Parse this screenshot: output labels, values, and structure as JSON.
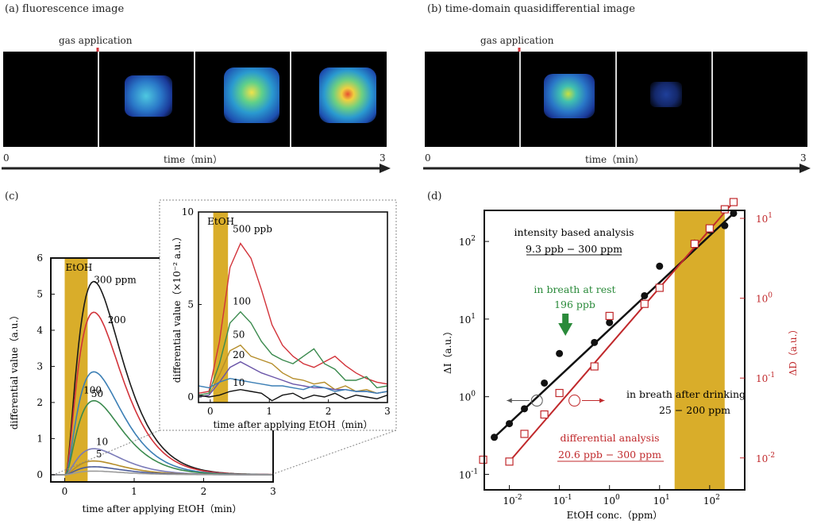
{
  "panels": {
    "a": {
      "label": "(a)  fluorescence image"
    },
    "b": {
      "label": "(b)  time-domain quasidifferential image"
    },
    "c": {
      "label": "(c)"
    },
    "d": {
      "label": "(d)"
    }
  },
  "strip_a": {
    "gas_label": "gas application",
    "time_label": "time（min）",
    "t0": "0",
    "t1": "3"
  },
  "strip_b": {
    "gas_label": "gas application",
    "time_label": "time（min）",
    "t0": "0",
    "t1": "3"
  },
  "colors": {
    "ethoh_band": "#d9ad2a",
    "red_axis": "#c0282b",
    "green_text": "#2a8a3a"
  },
  "chart_data": [
    {
      "id": "c-main",
      "type": "line",
      "xlabel": "time after applying EtOH（min）",
      "ylabel": "differential value（a.u.）",
      "xlim": [
        -0.2,
        3
      ],
      "ylim": [
        -0.2,
        6
      ],
      "xticks": [
        "0",
        "1",
        "2",
        "3"
      ],
      "yticks": [
        "0",
        "1",
        "2",
        "3",
        "4",
        "5",
        "6"
      ],
      "band_label": "EtOH",
      "band": [
        0,
        0.33
      ],
      "series": [
        {
          "name": "300 ppm",
          "color": "#1a1a1a",
          "peak": 5.35
        },
        {
          "name": "200",
          "color": "#d2333a",
          "peak": 4.5
        },
        {
          "name": "100",
          "color": "#3c7fb5",
          "peak": 2.85
        },
        {
          "name": "50",
          "color": "#3b8a4e",
          "peak": 2.05
        },
        {
          "name": "10",
          "color": "#7a7ab8",
          "peak": 0.72
        },
        {
          "name": "5",
          "color": "#b58d2a",
          "peak": 0.38
        },
        {
          "name": "",
          "color": "#4a5a9a",
          "peak": 0.22
        },
        {
          "name": "",
          "color": "#9a9a9a",
          "peak": 0.1
        }
      ]
    },
    {
      "id": "c-inset",
      "type": "line",
      "xlabel": "time after applying EtOH（min）",
      "ylabel": "differential value（×10⁻² a.u.）",
      "xlim": [
        -0.2,
        3
      ],
      "ylim": [
        -0.3,
        10
      ],
      "xticks": [
        "0",
        "1",
        "2",
        "3"
      ],
      "yticks": [
        "0",
        "5",
        "10"
      ],
      "band_label": "EtOH",
      "series": [
        {
          "name": "500 ppb",
          "color": "#d2333a",
          "y": [
            0.2,
            0.3,
            3.0,
            7.0,
            8.3,
            7.5,
            5.8,
            3.9,
            2.8,
            2.2,
            1.8,
            1.6,
            1.9,
            2.2,
            1.7,
            1.3,
            1.0,
            0.8,
            0.7
          ]
        },
        {
          "name": "100",
          "color": "#3b8a4e",
          "y": [
            0.1,
            0.2,
            1.8,
            4.0,
            4.6,
            4.0,
            3.0,
            2.3,
            2.0,
            1.8,
            2.2,
            2.6,
            1.8,
            1.5,
            0.9,
            0.9,
            1.1,
            0.5,
            0.6
          ]
        },
        {
          "name": "50",
          "color": "#b58d2a",
          "y": [
            0.0,
            0.1,
            1.2,
            2.5,
            2.8,
            2.2,
            2.0,
            1.8,
            1.3,
            1.0,
            0.9,
            0.7,
            0.8,
            0.4,
            0.6,
            0.3,
            0.4,
            0.2,
            0.3
          ]
        },
        {
          "name": "20",
          "color": "#6a55a8",
          "y": [
            0.0,
            0.1,
            0.8,
            1.6,
            1.9,
            1.6,
            1.3,
            1.1,
            0.9,
            0.7,
            0.6,
            0.5,
            0.5,
            0.4,
            0.4,
            0.3,
            0.3,
            0.2,
            0.3
          ]
        },
        {
          "name": "10",
          "color": "#111111",
          "y": [
            0.1,
            0.0,
            0.1,
            0.3,
            0.4,
            0.3,
            0.2,
            -0.2,
            0.1,
            0.2,
            -0.1,
            0.1,
            0.0,
            0.2,
            -0.1,
            0.1,
            0.0,
            -0.1,
            0.1
          ]
        },
        {
          "name": "",
          "color": "#3c7fb5",
          "y": [
            0.6,
            0.5,
            0.8,
            1.0,
            0.9,
            0.8,
            0.7,
            0.6,
            0.6,
            0.5,
            0.4,
            0.6,
            0.5,
            0.3,
            0.4,
            0.3,
            0.3,
            0.2,
            0.3
          ]
        }
      ]
    },
    {
      "id": "d",
      "type": "scatter",
      "xlabel": "EtOH conc.（ppm）",
      "ylabel": "ΔI（a.u.）",
      "ylabel_right": "ΔD（a.u.）",
      "x_range_log10": [
        -2.5,
        2.7
      ],
      "y_range_log10": [
        -1.2,
        2.4
      ],
      "yr_range_log10": [
        -2.4,
        1.1
      ],
      "xticks": [
        {
          "exp": "-2",
          "v": -2
        },
        {
          "exp": "-1",
          "v": -1
        },
        {
          "exp": "0",
          "v": 0
        },
        {
          "exp": "1",
          "v": 1
        },
        {
          "exp": "2",
          "v": 2
        }
      ],
      "yticks": [
        {
          "exp": "-1",
          "v": -1
        },
        {
          "exp": "0",
          "v": 0
        },
        {
          "exp": "1",
          "v": 1
        },
        {
          "exp": "2",
          "v": 2
        }
      ],
      "yrticks": [
        {
          "exp": "-2",
          "v": -2
        },
        {
          "exp": "-1",
          "v": -1
        },
        {
          "exp": "0",
          "v": 0
        },
        {
          "exp": "1",
          "v": 1
        }
      ],
      "band_log10": [
        1.3,
        2.3
      ],
      "intensity": {
        "x": [
          0.005,
          0.01,
          0.02,
          0.05,
          0.1,
          0.5,
          1,
          5,
          10,
          50,
          100,
          200,
          300
        ],
        "y": [
          0.3,
          0.45,
          0.7,
          1.5,
          3.6,
          5,
          9,
          20,
          48,
          95,
          140,
          160,
          230
        ]
      },
      "differential": {
        "x": [
          0.003,
          0.01,
          0.02,
          0.05,
          0.1,
          0.5,
          1,
          5,
          10,
          50,
          100,
          200,
          300
        ],
        "y": [
          0.0095,
          0.009,
          0.02,
          0.035,
          0.065,
          0.14,
          0.6,
          0.85,
          1.35,
          4.8,
          7.5,
          13,
          16
        ]
      },
      "labels": {
        "intensity_title": "intensity based analysis",
        "intensity_range": "9.3 ppb − 300 ppm",
        "rest_title": "in breath at rest",
        "rest_value": "196 ppb",
        "drink_title": "in breath after drinking",
        "drink_range": "25 − 200 ppm",
        "diff_title": "differential analysis",
        "diff_range": "20.6 ppb − 300 ppm"
      }
    }
  ]
}
